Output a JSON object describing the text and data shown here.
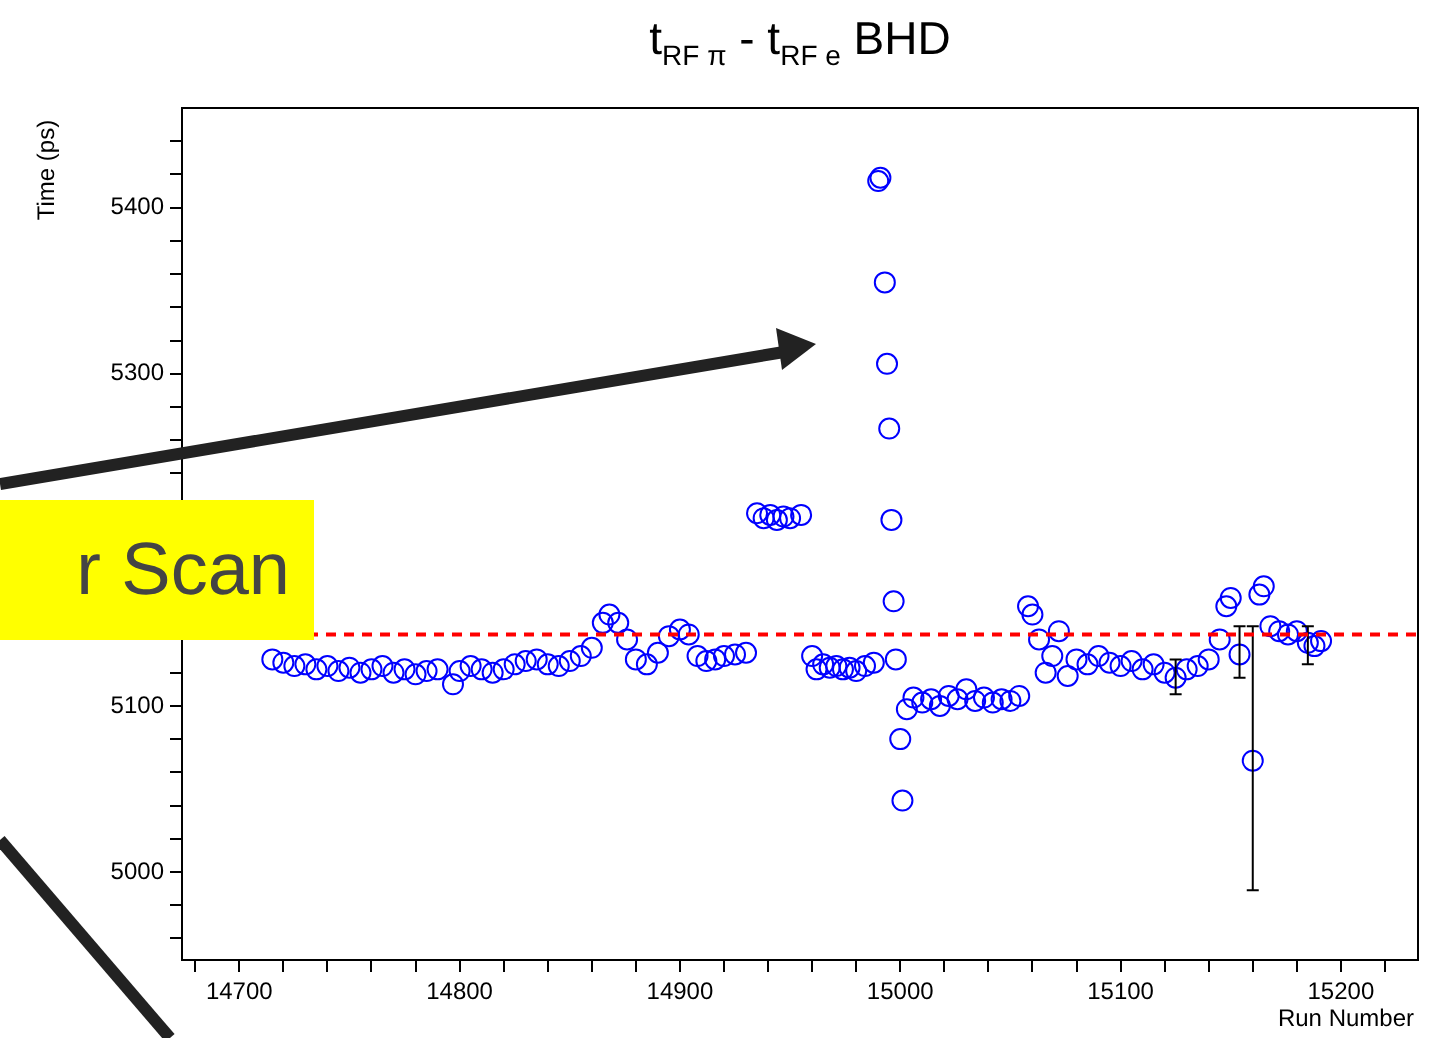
{
  "chart_data": {
    "type": "scatter",
    "title": "t$_{RF π}$ - t$_{RF e}$ BHD",
    "xlabel": "Run Number",
    "ylabel": "Time (ps)",
    "annotations": [
      "r Scan"
    ],
    "xlim": [
      14674,
      15235
    ],
    "ylim": [
      4947,
      5460
    ],
    "xticks": [
      {
        "value": 14680,
        "label": null
      },
      14700,
      {
        "value": 14720,
        "label": null
      },
      {
        "value": 14740,
        "label": null
      },
      {
        "value": 14760,
        "label": null
      },
      {
        "value": 14780,
        "label": null
      },
      14800,
      {
        "value": 14820,
        "label": null
      },
      {
        "value": 14840,
        "label": null
      },
      {
        "value": 14860,
        "label": null
      },
      {
        "value": 14880,
        "label": null
      },
      14900,
      {
        "value": 14920,
        "label": null
      },
      {
        "value": 14940,
        "label": null
      },
      {
        "value": 14960,
        "label": null
      },
      {
        "value": 14980,
        "label": null
      },
      15000,
      {
        "value": 15020,
        "label": null
      },
      {
        "value": 15040,
        "label": null
      },
      {
        "value": 15060,
        "label": null
      },
      {
        "value": 15080,
        "label": null
      },
      15100,
      {
        "value": 15120,
        "label": null
      },
      {
        "value": 15140,
        "label": null
      },
      {
        "value": 15160,
        "label": null
      },
      {
        "value": 15180,
        "label": null
      },
      15200,
      {
        "value": 15220,
        "label": null
      }
    ],
    "yticks": [
      {
        "value": 4960,
        "label": null
      },
      {
        "value": 4980,
        "label": null
      },
      5000,
      {
        "value": 5020,
        "label": null
      },
      {
        "value": 5040,
        "label": null
      },
      {
        "value": 5060,
        "label": null
      },
      {
        "value": 5080,
        "label": null
      },
      5100,
      {
        "value": 5120,
        "label": null
      },
      {
        "value": 5140,
        "label": null
      },
      {
        "value": 5160,
        "label": null
      },
      {
        "value": 5180,
        "label": null
      },
      {
        "value": 5200,
        "label": null
      },
      {
        "value": 5220,
        "label": null
      },
      {
        "value": 5240,
        "label": null
      },
      {
        "value": 5260,
        "label": null
      },
      {
        "value": 5280,
        "label": null
      },
      5300,
      {
        "value": 5320,
        "label": null
      },
      {
        "value": 5340,
        "label": null
      },
      {
        "value": 5360,
        "label": null
      },
      {
        "value": 5380,
        "label": null
      },
      5400,
      {
        "value": 5420,
        "label": null
      },
      {
        "value": 5440,
        "label": null
      }
    ],
    "grid": false,
    "legend": false,
    "marker": "circle",
    "ref_lines": [
      {
        "axis": "y",
        "value": 5143,
        "color": "#ff0000",
        "line_style": "dashed"
      }
    ],
    "series": [
      {
        "color": "#0000ff",
        "x": [
          14715,
          14720,
          14725,
          14730,
          14735,
          14740,
          14745,
          14750,
          14755,
          14760,
          14765,
          14770,
          14775,
          14780,
          14785,
          14790,
          14797,
          14800,
          14805,
          14810,
          14815,
          14820,
          14825,
          14830,
          14835,
          14840,
          14845,
          14850,
          14855,
          14860,
          14865,
          14868,
          14872,
          14876,
          14880,
          14885,
          14890,
          14895,
          14900,
          14904,
          14908,
          14912,
          14916,
          14920,
          14925,
          14930,
          14935,
          14938,
          14941,
          14944,
          14947,
          14950,
          14955,
          14960,
          14962,
          14965,
          14968,
          14971,
          14974,
          14977,
          14980,
          14984,
          14988,
          14990,
          14991,
          14993,
          14994,
          14995,
          14996,
          14997,
          14998,
          15000,
          15001,
          15003,
          15006,
          15010,
          15014,
          15018,
          15022,
          15026,
          15030,
          15034,
          15038,
          15042,
          15046,
          15050,
          15054,
          15058,
          15060,
          15063,
          15066,
          15069,
          15072,
          15076,
          15080,
          15085,
          15090,
          15095,
          15100,
          15105,
          15110,
          15115,
          15120,
          15125,
          15130,
          15135,
          15140,
          15145,
          15148,
          15150,
          15154,
          15160,
          15163,
          15165,
          15168,
          15172,
          15176,
          15180,
          15185,
          15188,
          15191
        ],
        "values": [
          5128,
          5126,
          5124,
          5125,
          5122,
          5124,
          5121,
          5123,
          5120,
          5122,
          5124,
          5120,
          5122,
          5119,
          5121,
          5122,
          5113,
          5121,
          5124,
          5122,
          5120,
          5122,
          5125,
          5127,
          5128,
          5125,
          5124,
          5127,
          5130,
          5135,
          5150,
          5155,
          5150,
          5140,
          5128,
          5125,
          5132,
          5142,
          5146,
          5143,
          5130,
          5127,
          5128,
          5130,
          5131,
          5132,
          5216,
          5213,
          5215,
          5212,
          5214,
          5213,
          5215,
          5130,
          5122,
          5125,
          5123,
          5124,
          5122,
          5123,
          5121,
          5124,
          5126,
          5416,
          5418,
          5355,
          5306,
          5267,
          5212,
          5163,
          5128,
          5080,
          5043,
          5098,
          5105,
          5102,
          5104,
          5100,
          5106,
          5104,
          5110,
          5103,
          5105,
          5102,
          5104,
          5103,
          5106,
          5160,
          5155,
          5140,
          5120,
          5130,
          5145,
          5118,
          5128,
          5125,
          5130,
          5126,
          5124,
          5127,
          5122,
          5125,
          5120,
          5117,
          5122,
          5124,
          5128,
          5140,
          5160,
          5165,
          5131,
          5067,
          5167,
          5172,
          5148,
          5145,
          5143,
          5145,
          5138,
          5136,
          5139
        ],
        "errors": [
          null,
          null,
          null,
          null,
          null,
          null,
          null,
          null,
          null,
          null,
          null,
          null,
          null,
          null,
          null,
          null,
          null,
          null,
          null,
          null,
          null,
          null,
          null,
          null,
          null,
          null,
          null,
          null,
          null,
          null,
          null,
          null,
          null,
          null,
          null,
          null,
          null,
          null,
          null,
          null,
          null,
          null,
          null,
          null,
          null,
          null,
          null,
          null,
          null,
          null,
          null,
          null,
          null,
          null,
          null,
          null,
          null,
          null,
          null,
          null,
          null,
          null,
          null,
          null,
          null,
          null,
          null,
          null,
          null,
          null,
          null,
          null,
          null,
          null,
          null,
          null,
          null,
          null,
          null,
          null,
          null,
          null,
          null,
          null,
          null,
          null,
          null,
          null,
          null,
          null,
          null,
          null,
          null,
          null,
          null,
          null,
          null,
          null,
          null,
          null,
          null,
          null,
          null,
          [
            5107,
            5128
          ],
          null,
          null,
          null,
          null,
          null,
          null,
          [
            5117,
            5148
          ],
          [
            4989,
            5148
          ],
          null,
          null,
          null,
          null,
          null,
          null,
          [
            5125,
            5148
          ],
          null,
          null
        ]
      }
    ]
  }
}
